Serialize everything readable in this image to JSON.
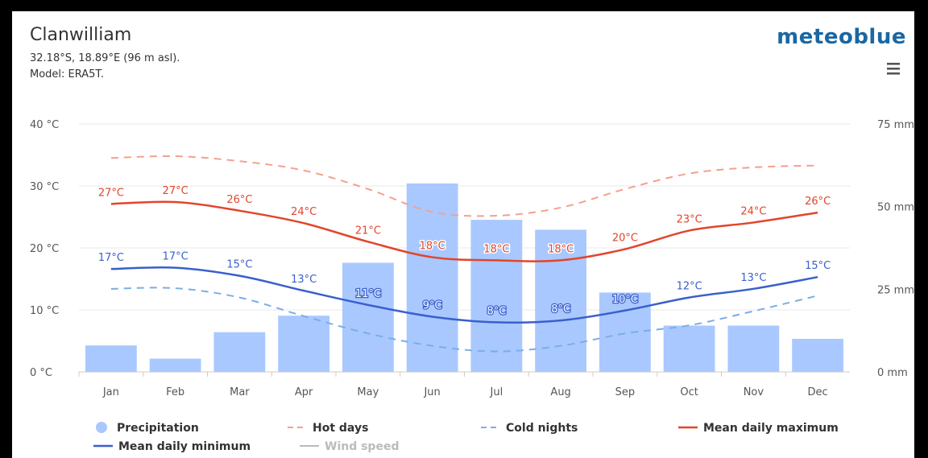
{
  "header": {
    "location": "Clanwilliam",
    "coords": "32.18°S, 18.89°E (96 m asl).",
    "model": "Model: ERA5T.",
    "brand": "meteoblue"
  },
  "colors": {
    "precipitation": "#a9c8ff",
    "hot_days": "#f5a08e",
    "cold_nights": "#7aaee6",
    "mean_max": "#e2452a",
    "mean_min": "#3a5fcd",
    "wind_speed": "#bbbbbb"
  },
  "chart_data": {
    "type": "bar+line",
    "categories": [
      "Jan",
      "Feb",
      "Mar",
      "Apr",
      "May",
      "Jun",
      "Jul",
      "Aug",
      "Sep",
      "Oct",
      "Nov",
      "Dec"
    ],
    "y_left": {
      "ticks": [
        "0 °C",
        "10 °C",
        "20 °C",
        "30 °C",
        "40 °C"
      ],
      "range": [
        0,
        40
      ]
    },
    "y_right": {
      "ticks": [
        "0 mm",
        "25 mm",
        "50 mm",
        "75 mm"
      ],
      "range": [
        0,
        75
      ]
    },
    "series": [
      {
        "name": "Precipitation",
        "type": "bar",
        "axis": "right",
        "values": [
          8,
          4,
          12,
          17,
          33,
          57,
          46,
          43,
          24,
          14,
          14,
          10
        ]
      },
      {
        "name": "Hot days",
        "type": "dashed-line",
        "axis": "left",
        "values": [
          34.5,
          34.8,
          34,
          32.5,
          29.5,
          25.8,
          25.2,
          26.5,
          29.5,
          32,
          33,
          33.3
        ]
      },
      {
        "name": "Cold nights",
        "type": "dashed-line",
        "axis": "left",
        "values": [
          13.4,
          13.5,
          12,
          9,
          6.2,
          4.2,
          3.3,
          4.2,
          6.2,
          7.5,
          9.8,
          12.3
        ]
      },
      {
        "name": "Mean daily maximum",
        "type": "line",
        "axis": "left",
        "values": [
          27.1,
          27.4,
          26,
          24,
          21,
          18.5,
          18,
          18,
          19.8,
          22.8,
          24.1,
          25.7
        ],
        "labels": [
          "27°C",
          "27°C",
          "26°C",
          "24°C",
          "21°C",
          "18°C",
          "18°C",
          "18°C",
          "20°C",
          "23°C",
          "24°C",
          "26°C"
        ]
      },
      {
        "name": "Mean daily minimum",
        "type": "line",
        "axis": "left",
        "values": [
          16.6,
          16.8,
          15.5,
          13.1,
          10.8,
          8.9,
          8,
          8.3,
          9.9,
          12,
          13.4,
          15.3
        ],
        "labels": [
          "17°C",
          "17°C",
          "15°C",
          "13°C",
          "11°C",
          "9°C",
          "8°C",
          "8°C",
          "10°C",
          "12°C",
          "13°C",
          "15°C"
        ]
      }
    ],
    "legend": {
      "placement": "bottom",
      "items": [
        "Precipitation",
        "Hot days",
        "Cold nights",
        "Mean daily maximum",
        "Mean daily minimum",
        "Wind speed"
      ]
    }
  }
}
